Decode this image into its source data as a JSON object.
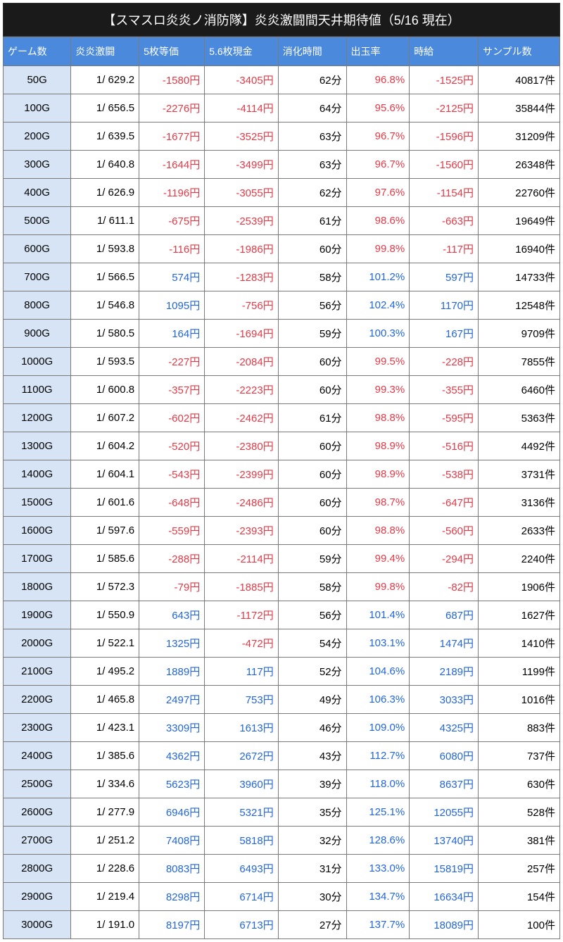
{
  "title": "【スマスロ炎炎ノ消防隊】炎炎激闘間天井期待値（5/16 現在）",
  "headers": [
    "ゲーム数",
    "炎炎激闘",
    "5枚等価",
    "5.6枚現金",
    "消化時間",
    "出玉率",
    "時給",
    "サンプル数"
  ],
  "colors": {
    "header_bg": "#4a89dc",
    "header_fg": "#ffffff",
    "title_bg": "#1a1a1a",
    "game_cell_bg": "#d6e4f5",
    "negative": "#e63946",
    "positive": "#2266dd",
    "neutral": "#000000",
    "border": "#7a7a7a"
  },
  "yen": "円",
  "minute": "分",
  "count_suffix": "件",
  "rows": [
    {
      "g": "50G",
      "ratio": "1/ 629.2",
      "v5": -1580,
      "v56": -3405,
      "t": 62,
      "rate": "96.8%",
      "hr": -1525,
      "n": 40817
    },
    {
      "g": "100G",
      "ratio": "1/ 656.5",
      "v5": -2276,
      "v56": -4114,
      "t": 64,
      "rate": "95.6%",
      "hr": -2125,
      "n": 35844
    },
    {
      "g": "200G",
      "ratio": "1/ 639.5",
      "v5": -1677,
      "v56": -3525,
      "t": 63,
      "rate": "96.7%",
      "hr": -1596,
      "n": 31209
    },
    {
      "g": "300G",
      "ratio": "1/ 640.8",
      "v5": -1644,
      "v56": -3499,
      "t": 63,
      "rate": "96.7%",
      "hr": -1560,
      "n": 26348
    },
    {
      "g": "400G",
      "ratio": "1/ 626.9",
      "v5": -1196,
      "v56": -3055,
      "t": 62,
      "rate": "97.6%",
      "hr": -1154,
      "n": 22760
    },
    {
      "g": "500G",
      "ratio": "1/ 611.1",
      "v5": -675,
      "v56": -2539,
      "t": 61,
      "rate": "98.6%",
      "hr": -663,
      "n": 19649
    },
    {
      "g": "600G",
      "ratio": "1/ 593.8",
      "v5": -116,
      "v56": -1986,
      "t": 60,
      "rate": "99.8%",
      "hr": -117,
      "n": 16940
    },
    {
      "g": "700G",
      "ratio": "1/ 566.5",
      "v5": 574,
      "v56": -1283,
      "t": 58,
      "rate": "101.2%",
      "hr": 597,
      "n": 14733
    },
    {
      "g": "800G",
      "ratio": "1/ 546.8",
      "v5": 1095,
      "v56": -756,
      "t": 56,
      "rate": "102.4%",
      "hr": 1170,
      "n": 12548
    },
    {
      "g": "900G",
      "ratio": "1/ 580.5",
      "v5": 164,
      "v56": -1694,
      "t": 59,
      "rate": "100.3%",
      "hr": 167,
      "n": 9709
    },
    {
      "g": "1000G",
      "ratio": "1/ 593.5",
      "v5": -227,
      "v56": -2084,
      "t": 60,
      "rate": "99.5%",
      "hr": -228,
      "n": 7855
    },
    {
      "g": "1100G",
      "ratio": "1/ 600.8",
      "v5": -357,
      "v56": -2223,
      "t": 60,
      "rate": "99.3%",
      "hr": -355,
      "n": 6460
    },
    {
      "g": "1200G",
      "ratio": "1/ 607.2",
      "v5": -602,
      "v56": -2462,
      "t": 61,
      "rate": "98.8%",
      "hr": -595,
      "n": 5363
    },
    {
      "g": "1300G",
      "ratio": "1/ 604.2",
      "v5": -520,
      "v56": -2380,
      "t": 60,
      "rate": "98.9%",
      "hr": -516,
      "n": 4492
    },
    {
      "g": "1400G",
      "ratio": "1/ 604.1",
      "v5": -543,
      "v56": -2399,
      "t": 60,
      "rate": "98.9%",
      "hr": -538,
      "n": 3731
    },
    {
      "g": "1500G",
      "ratio": "1/ 601.6",
      "v5": -648,
      "v56": -2486,
      "t": 60,
      "rate": "98.7%",
      "hr": -647,
      "n": 3136
    },
    {
      "g": "1600G",
      "ratio": "1/ 597.6",
      "v5": -559,
      "v56": -2393,
      "t": 60,
      "rate": "98.8%",
      "hr": -560,
      "n": 2633
    },
    {
      "g": "1700G",
      "ratio": "1/ 585.6",
      "v5": -288,
      "v56": -2114,
      "t": 59,
      "rate": "99.4%",
      "hr": -294,
      "n": 2240
    },
    {
      "g": "1800G",
      "ratio": "1/ 572.3",
      "v5": -79,
      "v56": -1885,
      "t": 58,
      "rate": "99.8%",
      "hr": -82,
      "n": 1906
    },
    {
      "g": "1900G",
      "ratio": "1/ 550.9",
      "v5": 643,
      "v56": -1172,
      "t": 56,
      "rate": "101.4%",
      "hr": 687,
      "n": 1627
    },
    {
      "g": "2000G",
      "ratio": "1/ 522.1",
      "v5": 1325,
      "v56": -472,
      "t": 54,
      "rate": "103.1%",
      "hr": 1474,
      "n": 1410
    },
    {
      "g": "2100G",
      "ratio": "1/ 495.2",
      "v5": 1889,
      "v56": 117,
      "t": 52,
      "rate": "104.6%",
      "hr": 2189,
      "n": 1199
    },
    {
      "g": "2200G",
      "ratio": "1/ 465.8",
      "v5": 2497,
      "v56": 753,
      "t": 49,
      "rate": "106.3%",
      "hr": 3033,
      "n": 1016
    },
    {
      "g": "2300G",
      "ratio": "1/ 423.1",
      "v5": 3309,
      "v56": 1613,
      "t": 46,
      "rate": "109.0%",
      "hr": 4325,
      "n": 883
    },
    {
      "g": "2400G",
      "ratio": "1/ 385.6",
      "v5": 4362,
      "v56": 2672,
      "t": 43,
      "rate": "112.7%",
      "hr": 6080,
      "n": 737
    },
    {
      "g": "2500G",
      "ratio": "1/ 334.6",
      "v5": 5623,
      "v56": 3960,
      "t": 39,
      "rate": "118.0%",
      "hr": 8637,
      "n": 630
    },
    {
      "g": "2600G",
      "ratio": "1/ 277.9",
      "v5": 6946,
      "v56": 5321,
      "t": 35,
      "rate": "125.1%",
      "hr": 12055,
      "n": 528
    },
    {
      "g": "2700G",
      "ratio": "1/ 251.2",
      "v5": 7408,
      "v56": 5818,
      "t": 32,
      "rate": "128.6%",
      "hr": 13740,
      "n": 381
    },
    {
      "g": "2800G",
      "ratio": "1/ 228.6",
      "v5": 8083,
      "v56": 6493,
      "t": 31,
      "rate": "133.0%",
      "hr": 15819,
      "n": 257
    },
    {
      "g": "2900G",
      "ratio": "1/ 219.4",
      "v5": 8298,
      "v56": 6714,
      "t": 30,
      "rate": "134.7%",
      "hr": 16634,
      "n": 154
    },
    {
      "g": "3000G",
      "ratio": "1/ 191.0",
      "v5": 8197,
      "v56": 6713,
      "t": 27,
      "rate": "137.7%",
      "hr": 18089,
      "n": 100
    }
  ]
}
